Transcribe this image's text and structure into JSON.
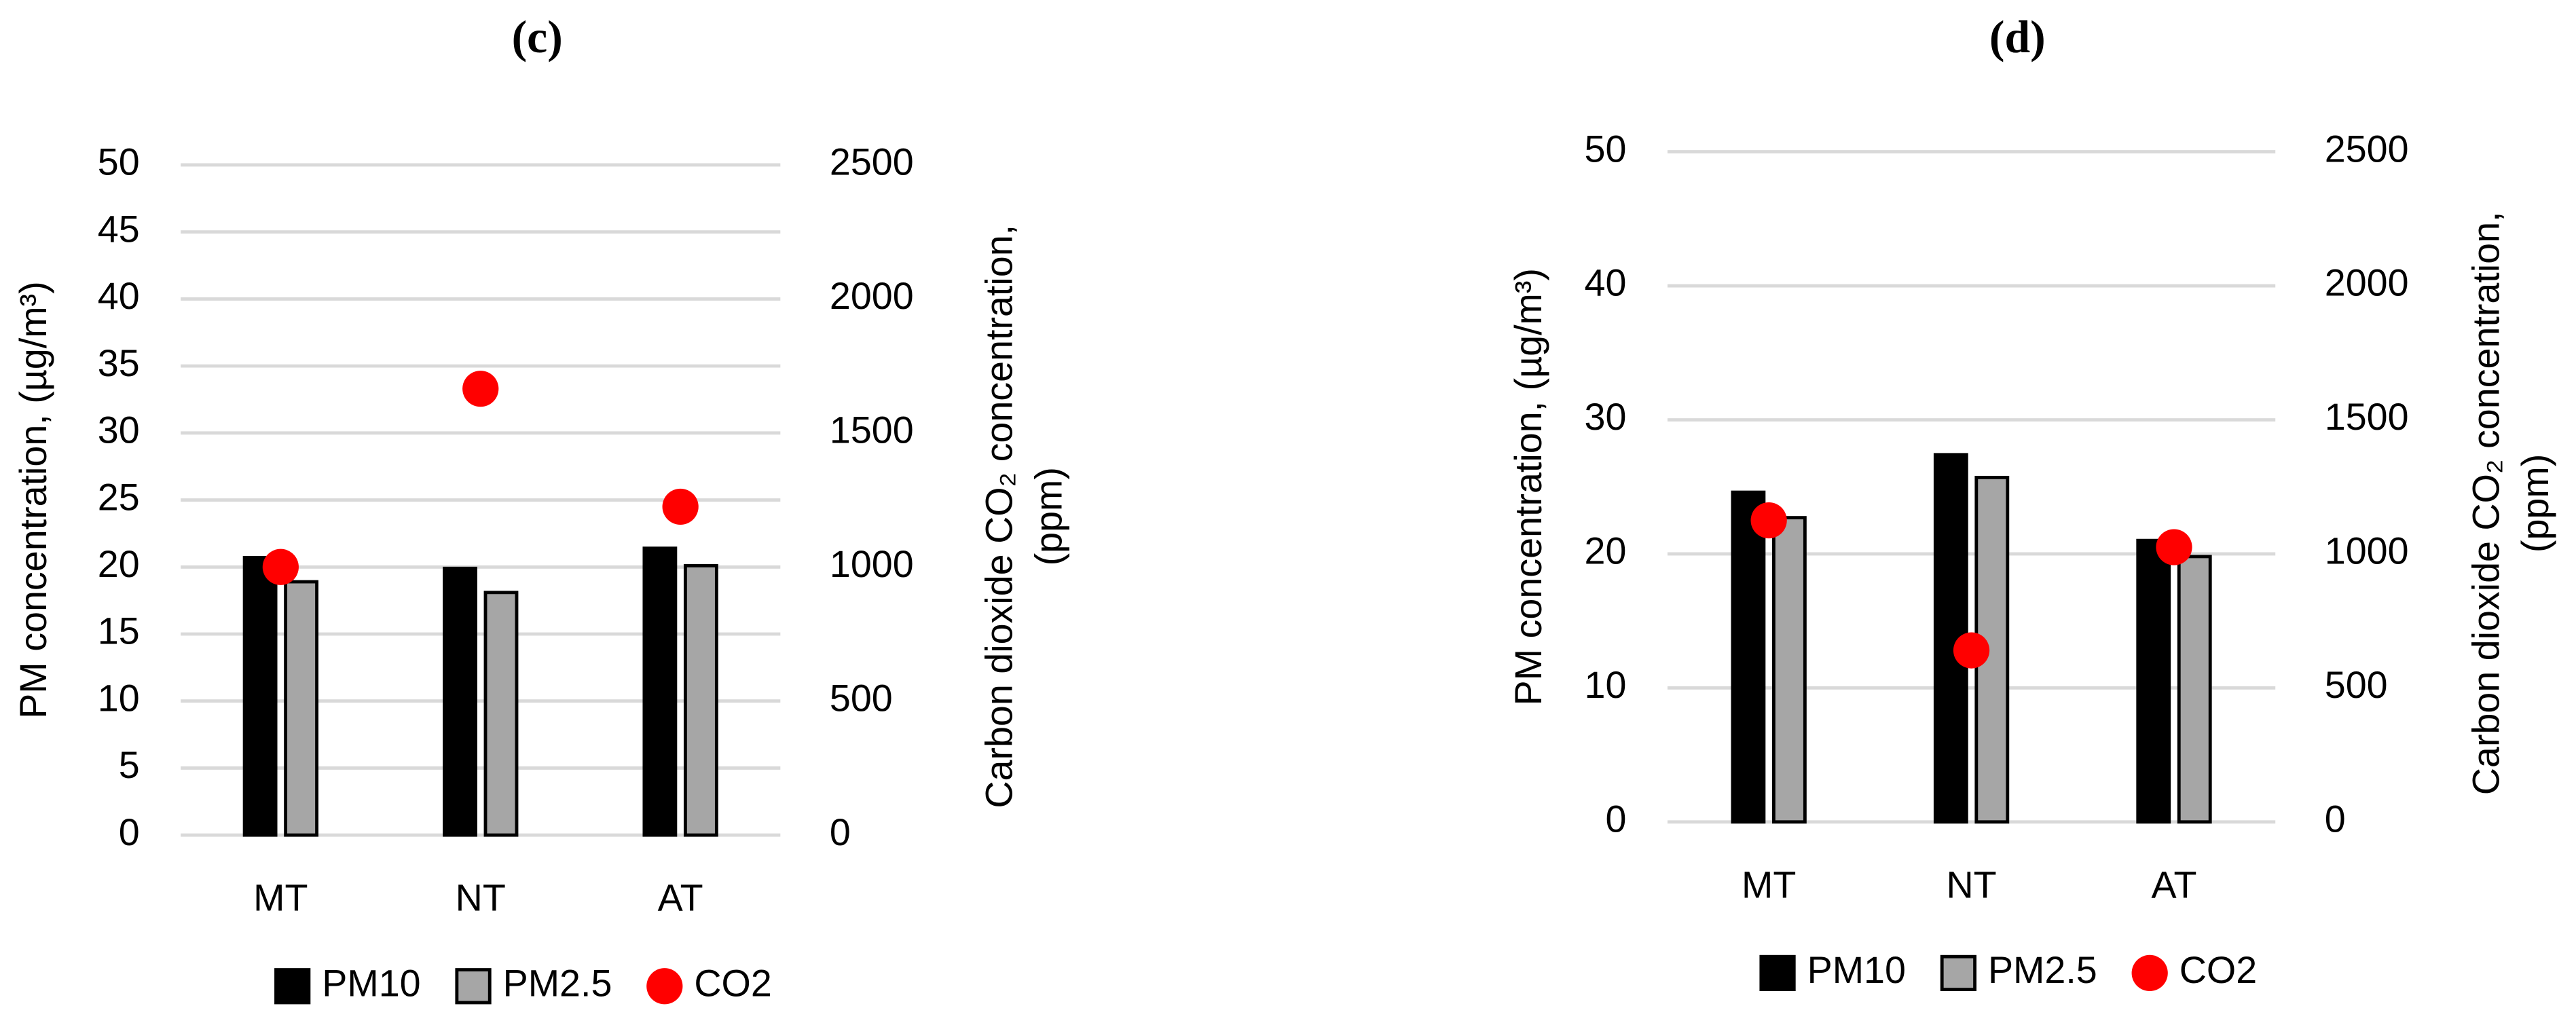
{
  "chart_data": [
    {
      "type": "bar",
      "title": "(c)",
      "categories": [
        "MT",
        "NT",
        "AT"
      ],
      "ylabel": "PM concentration, (µg/m³)",
      "y2label": [
        "Carbon dioxide CO₂ concentration,",
        "(ppm)"
      ],
      "ylim": [
        0,
        50
      ],
      "yticks": [
        0,
        5,
        10,
        15,
        20,
        25,
        30,
        35,
        40,
        45,
        50
      ],
      "y2lim": [
        0,
        2500
      ],
      "y2ticks": [
        0,
        500,
        1000,
        1500,
        2000,
        2500
      ],
      "grid": true,
      "series": [
        {
          "name": "PM10",
          "color": "#000000",
          "values": [
            20.7,
            19.9,
            21.4
          ]
        },
        {
          "name": "PM2.5",
          "color": "#a6a6a6",
          "values": [
            18.9,
            18.1,
            20.1
          ]
        },
        {
          "name": "CO2",
          "color": "#ff0000",
          "axis": "y2",
          "values": [
            1000,
            1665,
            1225
          ]
        }
      ]
    },
    {
      "type": "bar",
      "title": "(d)",
      "categories": [
        "MT",
        "NT",
        "AT"
      ],
      "ylabel": "PM concentration, (µg/m³)",
      "y2label": [
        "Carbon dioxide CO₂ concentration,",
        "(ppm)"
      ],
      "ylim": [
        0,
        50
      ],
      "yticks": [
        0,
        10,
        20,
        30,
        40,
        50
      ],
      "y2lim": [
        0,
        2500
      ],
      "y2ticks": [
        0,
        500,
        1000,
        1500,
        2000,
        2500
      ],
      "grid": true,
      "series": [
        {
          "name": "PM10",
          "color": "#000000",
          "values": [
            24.6,
            27.4,
            21.0
          ]
        },
        {
          "name": "PM2.5",
          "color": "#a6a6a6",
          "values": [
            22.7,
            25.7,
            19.8
          ]
        },
        {
          "name": "CO2",
          "color": "#ff0000",
          "axis": "y2",
          "values": [
            1125,
            640,
            1025
          ]
        }
      ]
    }
  ]
}
